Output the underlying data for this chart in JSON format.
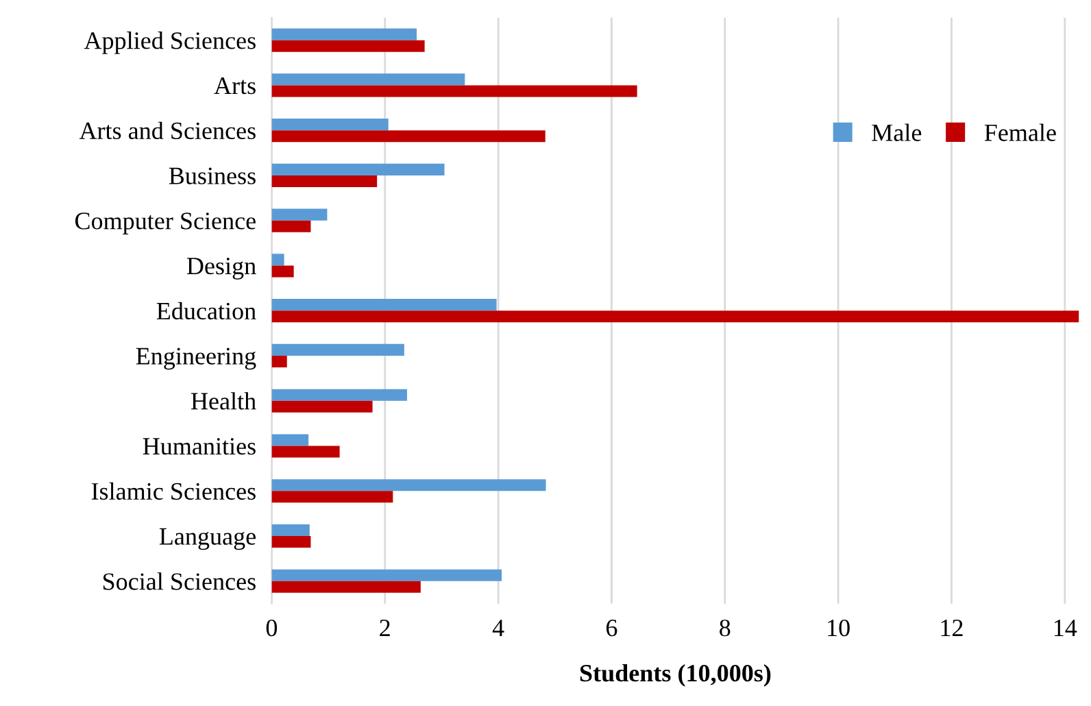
{
  "chart_data": {
    "type": "bar",
    "orientation": "horizontal",
    "xlabel": "Students (10,000s)",
    "categories": [
      "Applied Sciences",
      "Arts",
      "Arts and Sciences",
      "Business",
      "Computer Science",
      "Design",
      "Education",
      "Engineering",
      "Health",
      "Humanities",
      "Islamic Sciences",
      "Language",
      "Social Sciences"
    ],
    "series": [
      {
        "name": "Male",
        "color": "#5b9bd5",
        "values": [
          2.56,
          3.41,
          2.06,
          3.05,
          0.98,
          0.22,
          3.97,
          2.34,
          2.39,
          0.65,
          4.84,
          0.67,
          4.06
        ]
      },
      {
        "name": "Female",
        "color": "#c00000",
        "values": [
          2.7,
          6.45,
          4.83,
          1.86,
          0.69,
          0.39,
          14.25,
          0.27,
          1.78,
          1.2,
          2.14,
          0.69,
          2.63
        ]
      }
    ],
    "xlim": [
      0,
      14.25
    ],
    "xticks": [
      0,
      2,
      4,
      6,
      8,
      10,
      12,
      14
    ],
    "grid": "x",
    "legend": "right"
  }
}
